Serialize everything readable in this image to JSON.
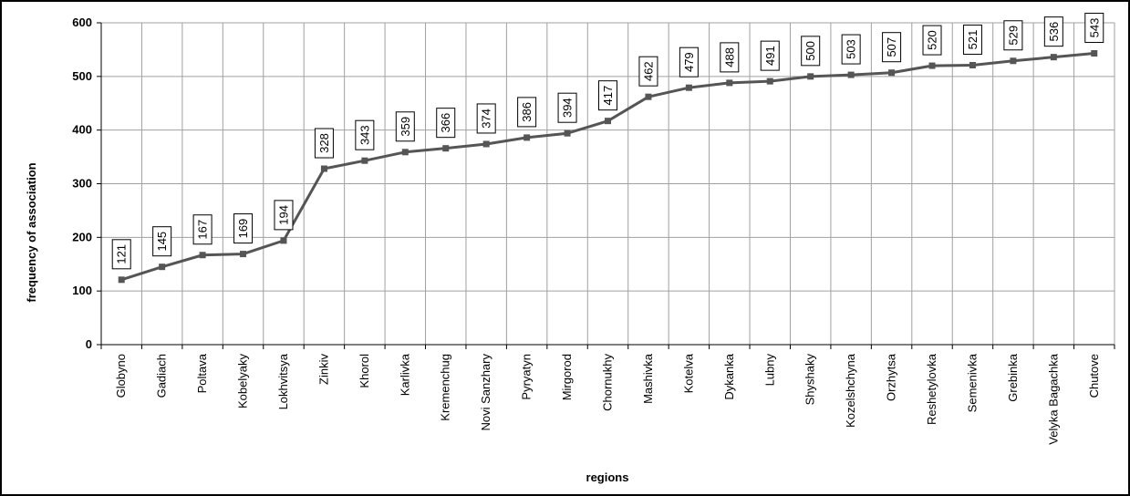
{
  "chart_data": {
    "type": "line",
    "title": "",
    "xlabel": "regions",
    "ylabel": "frequency of association",
    "ylim": [
      0,
      600
    ],
    "yticks": [
      0,
      100,
      200,
      300,
      400,
      500,
      600
    ],
    "grid": true,
    "legend": "none",
    "colors": {
      "line": "#555555",
      "marker": "#555555",
      "grid": "#a0a0a0",
      "axis": "#000000"
    },
    "categories": [
      "Globyno",
      "Gadiach",
      "Poltava",
      "Kobelyaky",
      "Lokhvitsya",
      "Zinkiv",
      "Khorol",
      "Karlivka",
      "Kremenchug",
      "Novi Sanzhary",
      "Pyryatyn",
      "Mirgorod",
      "Chornukhy",
      "Mashivka",
      "Kotelva",
      "Dykanka",
      "Lubny",
      "Shyshaky",
      "Kozelshchyna",
      "Orzhytsa",
      "Reshetylovka",
      "Semenivka",
      "Grebinka",
      "Velyka Bagachka",
      "Chutove"
    ],
    "series": [
      {
        "values": [
          121,
          145,
          167,
          169,
          194,
          328,
          343,
          359,
          366,
          374,
          386,
          394,
          417,
          462,
          479,
          488,
          491,
          500,
          503,
          507,
          520,
          521,
          529,
          536,
          543
        ]
      }
    ]
  }
}
